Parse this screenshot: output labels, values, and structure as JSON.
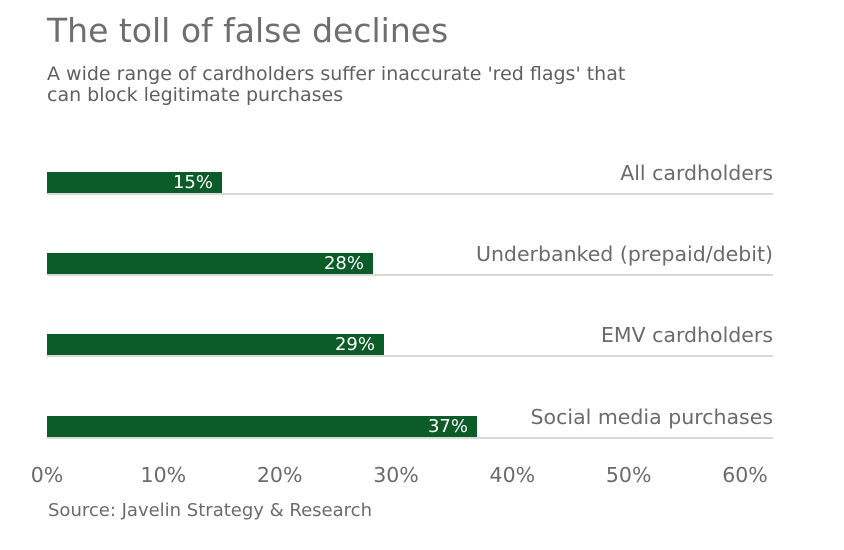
{
  "title": "The toll of false declines",
  "subtitle_line1": "A wide range of cardholders suffer inaccurate 'red flags' that",
  "subtitle_line2": "can block legitimate purchases",
  "source": "Source: Javelin Strategy & Research",
  "colors": {
    "bar": "#0b5c29",
    "title_text": "#6e6e6e",
    "subtitle_text": "#606060",
    "category_text": "#6b6b6b",
    "axis_text": "#6b6b6b",
    "separator": "#d9d9d9",
    "value_text": "#ffffff",
    "background": "#ffffff"
  },
  "chart_data": {
    "type": "bar",
    "orientation": "horizontal",
    "title": "The toll of false declines",
    "subtitle": "A wide range of cardholders suffer inaccurate 'red flags' that can block legitimate purchases",
    "categories": [
      "All cardholders",
      "Underbanked (prepaid/debit)",
      "EMV cardholders",
      "Social media purchases"
    ],
    "values": [
      15,
      28,
      29,
      37
    ],
    "value_labels": [
      "15%",
      "28%",
      "29%",
      "37%"
    ],
    "x_ticks": [
      "0%",
      "10%",
      "20%",
      "30%",
      "40%",
      "50%",
      "60%"
    ],
    "xlim": [
      0,
      60
    ],
    "xlabel": "",
    "ylabel": "",
    "grid": false,
    "legend": false,
    "value_label_position": "inside-end",
    "category_label_position": "right",
    "source": "Source: Javelin Strategy & Research"
  }
}
